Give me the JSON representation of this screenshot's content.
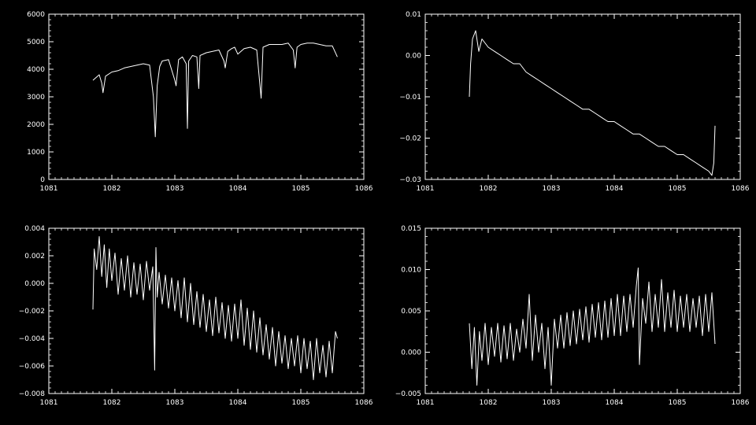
{
  "background": "#000000",
  "foreground": "#ffffff",
  "chart_data": [
    {
      "type": "line",
      "title": "",
      "xlabel": "",
      "ylabel": "",
      "xlim": [
        1081,
        1086
      ],
      "ylim": [
        0,
        6000
      ],
      "xticks": [
        1081,
        1082,
        1083,
        1084,
        1085,
        1086
      ],
      "xtick_labels": [
        "1081",
        "1082",
        "1083",
        "1084",
        "1085",
        "1086"
      ],
      "yticks": [
        0,
        1000,
        2000,
        3000,
        4000,
        5000,
        6000
      ],
      "ytick_labels": [
        "0",
        "1000",
        "2000",
        "3000",
        "4000",
        "5000",
        "6000"
      ],
      "grid": false,
      "series": [
        {
          "x": [
            1081.7,
            1081.75,
            1081.8,
            1081.84,
            1081.86,
            1081.9,
            1082.0,
            1082.1,
            1082.2,
            1082.3,
            1082.4,
            1082.5,
            1082.6,
            1082.66,
            1082.69,
            1082.72,
            1082.76,
            1082.8,
            1082.9,
            1083.0,
            1083.02,
            1083.06,
            1083.12,
            1083.18,
            1083.2,
            1083.22,
            1083.28,
            1083.35,
            1083.38,
            1083.4,
            1083.5,
            1083.6,
            1083.7,
            1083.78,
            1083.8,
            1083.84,
            1083.9,
            1083.95,
            1084.0,
            1084.1,
            1084.2,
            1084.3,
            1084.34,
            1084.37,
            1084.4,
            1084.5,
            1084.6,
            1084.7,
            1084.8,
            1084.88,
            1084.91,
            1084.94,
            1085.0,
            1085.1,
            1085.2,
            1085.3,
            1085.4,
            1085.5,
            1085.58
          ],
          "y": [
            3600,
            3700,
            3800,
            3500,
            3150,
            3750,
            3900,
            3950,
            4050,
            4100,
            4150,
            4200,
            4150,
            3000,
            1550,
            3400,
            4100,
            4300,
            4350,
            3600,
            3400,
            4350,
            4450,
            4200,
            1850,
            4300,
            4500,
            4450,
            3300,
            4500,
            4600,
            4650,
            4700,
            4300,
            4050,
            4650,
            4750,
            4800,
            4550,
            4750,
            4800,
            4700,
            3700,
            2950,
            4800,
            4900,
            4900,
            4900,
            4950,
            4700,
            4050,
            4800,
            4900,
            4950,
            4950,
            4900,
            4850,
            4850,
            4450
          ]
        }
      ]
    },
    {
      "type": "line",
      "title": "",
      "xlabel": "",
      "ylabel": "",
      "xlim": [
        1081,
        1086
      ],
      "ylim": [
        -0.03,
        0.01
      ],
      "xticks": [
        1081,
        1082,
        1083,
        1084,
        1085,
        1086
      ],
      "xtick_labels": [
        "1081",
        "1082",
        "1083",
        "1084",
        "1085",
        "1086"
      ],
      "yticks": [
        -0.03,
        -0.02,
        -0.01,
        0.0,
        0.01
      ],
      "ytick_labels": [
        "−0.03",
        "−0.02",
        "−0.01",
        "0.00",
        "0.01"
      ],
      "grid": false,
      "series": [
        {
          "x": [
            1081.7,
            1081.72,
            1081.75,
            1081.8,
            1081.85,
            1081.9,
            1082.0,
            1082.1,
            1082.2,
            1082.3,
            1082.4,
            1082.5,
            1082.6,
            1082.7,
            1082.8,
            1082.9,
            1083.0,
            1083.1,
            1083.2,
            1083.3,
            1083.4,
            1083.5,
            1083.6,
            1083.7,
            1083.8,
            1083.9,
            1084.0,
            1084.1,
            1084.2,
            1084.3,
            1084.4,
            1084.5,
            1084.6,
            1084.7,
            1084.8,
            1084.9,
            1085.0,
            1085.1,
            1085.2,
            1085.3,
            1085.4,
            1085.5,
            1085.55,
            1085.58,
            1085.6
          ],
          "y": [
            -0.01,
            -0.002,
            0.004,
            0.006,
            0.001,
            0.004,
            0.002,
            0.001,
            0.0,
            -0.001,
            -0.002,
            -0.002,
            -0.004,
            -0.005,
            -0.006,
            -0.007,
            -0.008,
            -0.009,
            -0.01,
            -0.011,
            -0.012,
            -0.013,
            -0.013,
            -0.014,
            -0.015,
            -0.016,
            -0.016,
            -0.017,
            -0.018,
            -0.019,
            -0.019,
            -0.02,
            -0.021,
            -0.022,
            -0.022,
            -0.023,
            -0.024,
            -0.024,
            -0.025,
            -0.026,
            -0.027,
            -0.028,
            -0.029,
            -0.026,
            -0.017
          ]
        }
      ]
    },
    {
      "type": "line",
      "title": "",
      "xlabel": "",
      "ylabel": "",
      "xlim": [
        1081,
        1086
      ],
      "ylim": [
        -0.008,
        0.004
      ],
      "xticks": [
        1081,
        1082,
        1083,
        1084,
        1085,
        1086
      ],
      "xtick_labels": [
        "1081",
        "1082",
        "1083",
        "1084",
        "1085",
        "1086"
      ],
      "yticks": [
        -0.008,
        -0.006,
        -0.004,
        -0.002,
        0.0,
        0.002,
        0.004
      ],
      "ytick_labels": [
        "−0.008",
        "−0.006",
        "−0.004",
        "−0.002",
        "0.000",
        "0.002",
        "0.004"
      ],
      "grid": false,
      "series": [
        {
          "x": [
            1081.7,
            1081.72,
            1081.76,
            1081.8,
            1081.84,
            1081.88,
            1081.92,
            1081.96,
            1082.0,
            1082.05,
            1082.1,
            1082.15,
            1082.2,
            1082.25,
            1082.3,
            1082.35,
            1082.4,
            1082.45,
            1082.5,
            1082.55,
            1082.6,
            1082.65,
            1082.68,
            1082.7,
            1082.72,
            1082.75,
            1082.8,
            1082.85,
            1082.9,
            1082.95,
            1083.0,
            1083.05,
            1083.1,
            1083.15,
            1083.2,
            1083.25,
            1083.3,
            1083.35,
            1083.4,
            1083.45,
            1083.5,
            1083.55,
            1083.6,
            1083.65,
            1083.7,
            1083.75,
            1083.8,
            1083.85,
            1083.9,
            1083.95,
            1084.0,
            1084.05,
            1084.1,
            1084.15,
            1084.2,
            1084.25,
            1084.3,
            1084.35,
            1084.4,
            1084.45,
            1084.5,
            1084.55,
            1084.6,
            1084.65,
            1084.7,
            1084.75,
            1084.8,
            1084.85,
            1084.9,
            1084.95,
            1085.0,
            1085.05,
            1085.1,
            1085.15,
            1085.2,
            1085.25,
            1085.3,
            1085.35,
            1085.4,
            1085.45,
            1085.5,
            1085.55,
            1085.58
          ],
          "y": [
            -0.0019,
            0.0025,
            0.001,
            0.0034,
            0.0005,
            0.0028,
            -0.0003,
            0.0025,
            0.0002,
            0.0022,
            -0.0008,
            0.0018,
            -0.0005,
            0.002,
            -0.001,
            0.0015,
            -0.0008,
            0.0014,
            -0.0012,
            0.0016,
            -0.0005,
            0.0012,
            -0.0063,
            0.0026,
            -0.001,
            0.0008,
            -0.0015,
            0.0006,
            -0.0018,
            0.0004,
            -0.002,
            0.0002,
            -0.0025,
            0.0004,
            -0.0028,
            0.0,
            -0.003,
            -0.0006,
            -0.0032,
            -0.0008,
            -0.0035,
            -0.0012,
            -0.0038,
            -0.001,
            -0.0036,
            -0.0014,
            -0.004,
            -0.0016,
            -0.0042,
            -0.0015,
            -0.004,
            -0.0012,
            -0.0045,
            -0.0018,
            -0.0048,
            -0.002,
            -0.005,
            -0.0025,
            -0.0052,
            -0.003,
            -0.0055,
            -0.0032,
            -0.006,
            -0.0035,
            -0.0058,
            -0.0038,
            -0.0062,
            -0.004,
            -0.006,
            -0.0038,
            -0.0065,
            -0.004,
            -0.0062,
            -0.0042,
            -0.007,
            -0.004,
            -0.0065,
            -0.0045,
            -0.0068,
            -0.0042,
            -0.0065,
            -0.0035,
            -0.004
          ]
        }
      ]
    },
    {
      "type": "line",
      "title": "",
      "xlabel": "",
      "ylabel": "",
      "xlim": [
        1081,
        1086
      ],
      "ylim": [
        -0.005,
        0.015
      ],
      "xticks": [
        1081,
        1082,
        1083,
        1084,
        1085,
        1086
      ],
      "xtick_labels": [
        "1081",
        "1082",
        "1083",
        "1084",
        "1085",
        "1086"
      ],
      "yticks": [
        -0.005,
        0.0,
        0.005,
        0.01,
        0.015
      ],
      "ytick_labels": [
        "−0.005",
        "0.000",
        "0.005",
        "0.010",
        "0.015"
      ],
      "grid": false,
      "series": [
        {
          "x": [
            1081.7,
            1081.74,
            1081.78,
            1081.82,
            1081.86,
            1081.9,
            1081.95,
            1082.0,
            1082.05,
            1082.1,
            1082.15,
            1082.2,
            1082.25,
            1082.3,
            1082.35,
            1082.4,
            1082.45,
            1082.5,
            1082.55,
            1082.6,
            1082.65,
            1082.7,
            1082.75,
            1082.8,
            1082.85,
            1082.9,
            1082.95,
            1083.0,
            1083.05,
            1083.1,
            1083.15,
            1083.2,
            1083.25,
            1083.3,
            1083.35,
            1083.4,
            1083.45,
            1083.5,
            1083.55,
            1083.6,
            1083.65,
            1083.7,
            1083.75,
            1083.8,
            1083.85,
            1083.9,
            1083.95,
            1084.0,
            1084.05,
            1084.1,
            1084.15,
            1084.2,
            1084.25,
            1084.3,
            1084.35,
            1084.38,
            1084.4,
            1084.45,
            1084.5,
            1084.55,
            1084.6,
            1084.65,
            1084.7,
            1084.75,
            1084.8,
            1084.85,
            1084.9,
            1084.95,
            1085.0,
            1085.05,
            1085.1,
            1085.15,
            1085.2,
            1085.25,
            1085.3,
            1085.35,
            1085.4,
            1085.45,
            1085.5,
            1085.55,
            1085.6
          ],
          "y": [
            0.0035,
            -0.002,
            0.003,
            -0.004,
            0.0025,
            -0.001,
            0.0035,
            -0.0015,
            0.003,
            -0.0005,
            0.0035,
            -0.0012,
            0.0032,
            -0.0008,
            0.0035,
            -0.001,
            0.0028,
            0.0,
            0.004,
            0.0005,
            0.007,
            -0.001,
            0.0045,
            0.0,
            0.0035,
            -0.002,
            0.003,
            -0.004,
            0.004,
            0.0005,
            0.0045,
            0.0005,
            0.0048,
            0.0008,
            0.005,
            0.001,
            0.0052,
            0.0015,
            0.0055,
            0.0012,
            0.0058,
            0.0018,
            0.006,
            0.0015,
            0.0062,
            0.0018,
            0.0065,
            0.002,
            0.007,
            0.002,
            0.0068,
            0.0025,
            0.007,
            0.003,
            0.008,
            0.0102,
            -0.0015,
            0.0065,
            0.0035,
            0.0085,
            0.0025,
            0.007,
            0.003,
            0.0088,
            0.0025,
            0.0072,
            0.003,
            0.0075,
            0.0025,
            0.0068,
            0.003,
            0.007,
            0.0025,
            0.0065,
            0.003,
            0.0068,
            0.002,
            0.007,
            0.0025,
            0.0072,
            0.001
          ]
        }
      ]
    }
  ]
}
